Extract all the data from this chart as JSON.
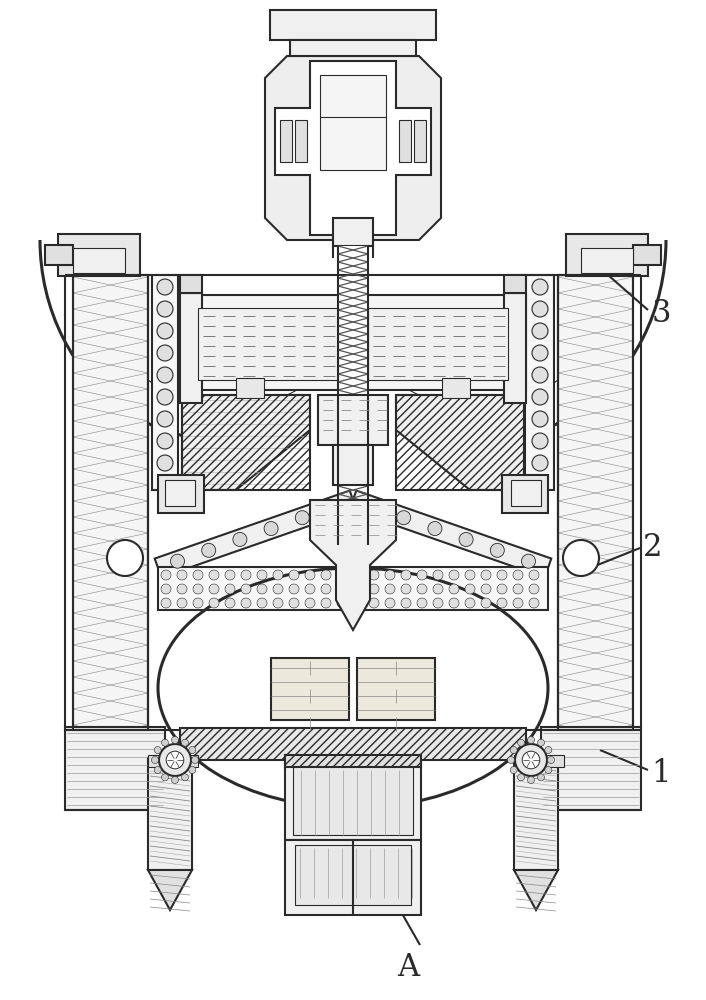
{
  "background_color": "#ffffff",
  "line_color": "#2a2a2a",
  "label_1": "1",
  "label_2": "2",
  "label_3": "3",
  "label_A": "A",
  "fig_width": 7.06,
  "fig_height": 10.0
}
